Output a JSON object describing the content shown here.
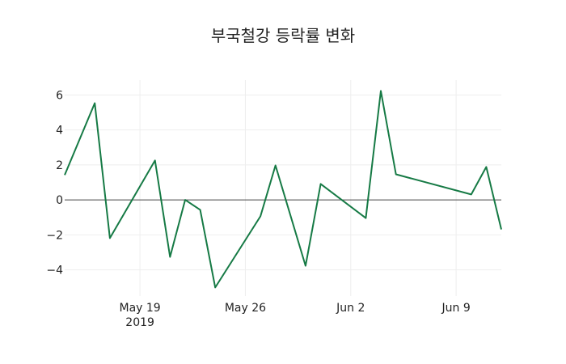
{
  "chart_data": {
    "type": "line",
    "title": "부국철강 등락률 변화",
    "xlabel": "",
    "ylabel": "",
    "x": [
      "2019-05-14",
      "2019-05-16",
      "2019-05-17",
      "2019-05-20",
      "2019-05-21",
      "2019-05-22",
      "2019-05-23",
      "2019-05-24",
      "2019-05-27",
      "2019-05-28",
      "2019-05-30",
      "2019-05-31",
      "2019-06-03",
      "2019-06-04",
      "2019-06-05",
      "2019-06-10",
      "2019-06-11",
      "2019-06-12"
    ],
    "series": [
      {
        "name": "등락률",
        "color": "#167a45",
        "values": [
          1.42,
          5.53,
          -2.19,
          2.25,
          -3.26,
          0.0,
          -0.57,
          -5.01,
          -0.94,
          1.97,
          -3.77,
          0.91,
          -1.04,
          6.23,
          1.46,
          0.31,
          1.88,
          -1.69
        ]
      }
    ],
    "xlim": [
      "2019-05-14",
      "2019-06-12"
    ],
    "ylim": [
      -5.5,
      6.85
    ],
    "y_ticks": [
      -4,
      -2,
      0,
      2,
      4,
      6
    ],
    "y_tick_labels": [
      "−4",
      "−2",
      "0",
      "2",
      "4",
      "6"
    ],
    "x_ticks": [
      "2019-05-19",
      "2019-05-26",
      "2019-06-02",
      "2019-06-09"
    ],
    "x_tick_labels": [
      "May 19",
      "May 26",
      "Jun 2",
      "Jun 9"
    ],
    "x_tick_sublabel": "2019",
    "grid": true,
    "zero_line": true,
    "legend": false
  },
  "colors": {
    "line": "#167a45",
    "grid": "#eeeeee",
    "zero_line": "#444444",
    "text": "#222222"
  }
}
